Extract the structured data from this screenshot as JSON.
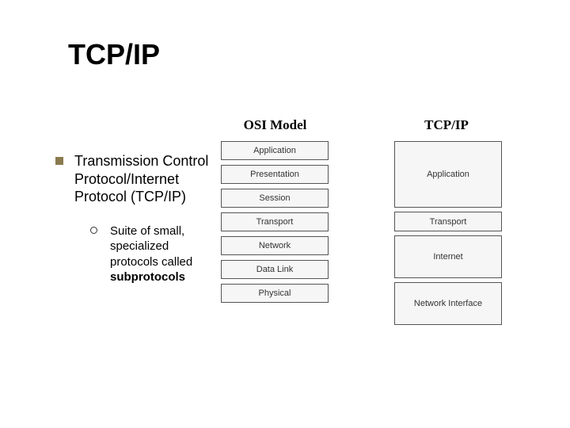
{
  "title": "TCP/IP",
  "headers": {
    "osi": "OSI Model",
    "tcp": "TCP/IP"
  },
  "bullet": {
    "main": "Transmission Control Protocol/Internet Protocol (TCP/IP)",
    "sub_prefix": "Suite of small, specialized protocols called ",
    "sub_bold": "subprotocols"
  },
  "osi_layers": [
    "Application",
    "Presentation",
    "Session",
    "Transport",
    "Network",
    "Data Link",
    "Physical"
  ],
  "tcpip_layers": [
    "Application",
    "Transport",
    "Internet",
    "Network Interface"
  ],
  "styling": {
    "bullet_square_color": "#8a7a4d",
    "box_border": "#555555",
    "box_bg": "#f6f6f6",
    "box_font_size": 11,
    "title_font_size": 36,
    "header_font_size": 17,
    "bullet_font_size": 18,
    "sub_font_size": 15,
    "osi_box_height": 24,
    "tcp_app_height": 84,
    "tcp_transport_height": 25,
    "tcp_lower_height": 54
  }
}
